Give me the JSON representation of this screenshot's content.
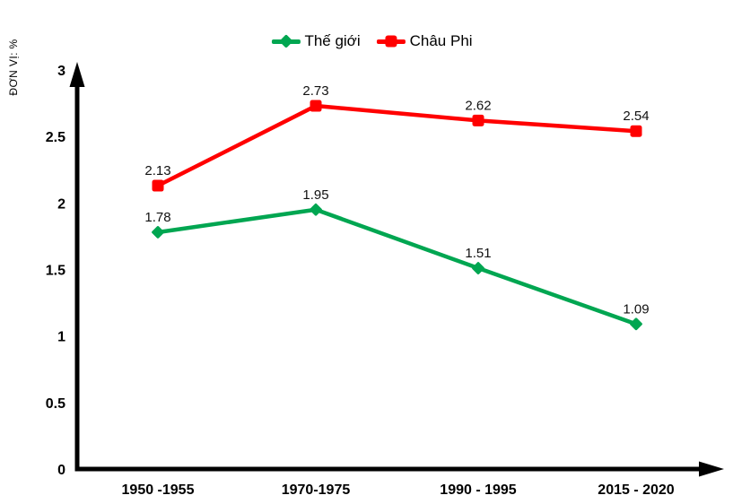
{
  "page": {
    "background": "#ffffff"
  },
  "chart_data": {
    "type": "line",
    "title": "",
    "unit_label": "ĐƠN VỊ: %",
    "categories": [
      "1950 -1955",
      "1970-1975",
      "1990 - 1995",
      "2015 - 2020"
    ],
    "series": [
      {
        "name": "Thế giới",
        "color": "#00A651",
        "marker": "diamond",
        "values": [
          1.78,
          1.95,
          1.51,
          1.09
        ],
        "labels": [
          "1.78",
          "1.95",
          "1.51",
          "1.09"
        ]
      },
      {
        "name": "Châu Phi",
        "color": "#FF0000",
        "marker": "square",
        "values": [
          2.13,
          2.73,
          2.62,
          2.54
        ],
        "labels": [
          "2.13",
          "2.73",
          "2.62",
          "2.54"
        ]
      }
    ],
    "ylim": [
      0,
      3
    ],
    "yticks": [
      0,
      0.5,
      1,
      1.5,
      2,
      2.5,
      3
    ],
    "ytick_labels": [
      "0",
      "0.5",
      "1",
      "1.5",
      "2",
      "2.5",
      "3"
    ],
    "legend_position": "top",
    "grid": false,
    "axis_color": "#000000",
    "text_color": "#000000"
  }
}
